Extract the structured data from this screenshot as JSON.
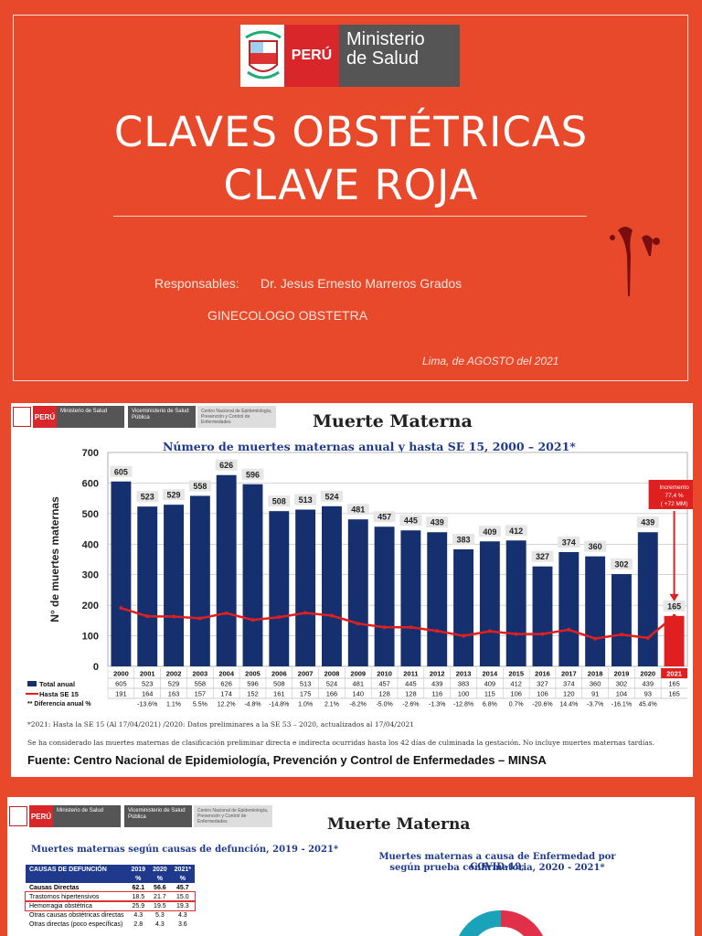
{
  "slide1": {
    "logo": {
      "country": "PERÚ",
      "ministry_line1": "Ministerio",
      "ministry_line2": "de Salud"
    },
    "title_line1": "CLAVES OBSTÉTRICAS",
    "title_line2": "CLAVE ROJA",
    "responsables_label": "Responsables:",
    "responsable_name": "Dr.  Jesus Ernesto Marreros Grados",
    "specialty": "GINECOLOGO OBSTETRA",
    "place_date": "Lima,  de AGOSTO del 2021"
  },
  "slide2": {
    "header": {
      "peru": "PERÚ",
      "ministry": "Ministerio de Salud",
      "vice": "Viceministerio de Salud Pública",
      "center": "Centro Nacional de Epidemiología, Prevención y Control de Enfermedades"
    },
    "title": "Muerte  Materna",
    "subtitle": "Número de muertes maternas anual y hasta SE 15,  2000 – 2021*",
    "footnote1": "*2021:  Hasta la SE 15 (Al 17/04/2021)          /2020: Datos preliminares a la SE 53 – 2020, actualizados al 17/04/2021",
    "footnote2": "Se ha considerado las muertes maternas de clasificación preliminar directa e indirecta ocurridas hasta los 42 días de culminada la gestación. No incluye muertes maternas  tardías.",
    "source": "Fuente: Centro Nacional de Epidemiología, Prevención y Control de Enfermedades – MINSA"
  },
  "chart_data": {
    "type": "bar",
    "title": "Número de muertes maternas anual y hasta SE 15,  2000 – 2021*",
    "ylabel": "N° de muertes maternas",
    "ylim": [
      0,
      700
    ],
    "yticks": [
      0,
      100,
      200,
      300,
      400,
      500,
      600,
      700
    ],
    "categories": [
      "2000",
      "2001",
      "2002",
      "2003",
      "2004",
      "2005",
      "2006",
      "2007",
      "2008",
      "2009",
      "2010",
      "2011",
      "2012",
      "2013",
      "2014",
      "2015",
      "2016",
      "2017",
      "2018",
      "2019",
      "2020",
      "2021"
    ],
    "series": [
      {
        "name": "Total anual",
        "color": "#16306f",
        "values": [
          605,
          523,
          529,
          558,
          626,
          596,
          508,
          513,
          524,
          481,
          457,
          445,
          439,
          383,
          409,
          412,
          327,
          374,
          360,
          302,
          439,
          165
        ]
      },
      {
        "name": "Hasta SE 15",
        "color": "#e02020",
        "values": [
          191,
          164,
          163,
          157,
          174,
          152,
          161,
          175,
          166,
          140,
          128,
          128,
          116,
          100,
          115,
          106,
          106,
          120,
          91,
          104,
          93,
          165
        ]
      }
    ],
    "diferencia_label": "** Diferencia anual %",
    "diferencia": [
      "",
      "-13.6%",
      "1.1%",
      "5.5%",
      "12.2%",
      "-4.8%",
      "-14.8%",
      "1.0%",
      "2.1%",
      "-8.2%",
      "-5.0%",
      "-2.6%",
      "-1.3%",
      "-12.8%",
      "6.8%",
      "0.7%",
      "-20.6%",
      "14.4%",
      "-3.7%",
      "-16.1%",
      "45.4%",
      ""
    ],
    "annotation_line1": "Incremento",
    "annotation_line2": "77,4 %",
    "annotation_line3": "( +72 MM)",
    "grid": true
  },
  "slide3": {
    "title": "Muerte  Materna",
    "left_heading": "Muertes maternas según causas de defunción, 2019 - 2021*",
    "right_heading_line1": "Muertes maternas a causa de Enfermedad por COVID-19,",
    "right_heading_line2": "según prueba confirmatoria, 2020 - 2021*",
    "table": {
      "header": [
        "CAUSAS DE DEFUNCIÓN",
        "2019",
        "2020",
        "2021*"
      ],
      "units": [
        "",
        "%",
        "%",
        "%"
      ],
      "rows": [
        [
          "Causas Directas",
          "62.1",
          "56.6",
          "45.7"
        ],
        [
          "Trastornos hipertensivos",
          "18.5",
          "21.7",
          "15.0"
        ],
        [
          "Hemorragia obstétrica",
          "25.9",
          "19.5",
          "19.3"
        ],
        [
          "Otras causas obstétricas directas",
          "4.3",
          "5.3",
          "4.3"
        ],
        [
          "Otras directas (poco específicas)",
          "2.8",
          "4.3",
          "3.6"
        ]
      ]
    }
  }
}
